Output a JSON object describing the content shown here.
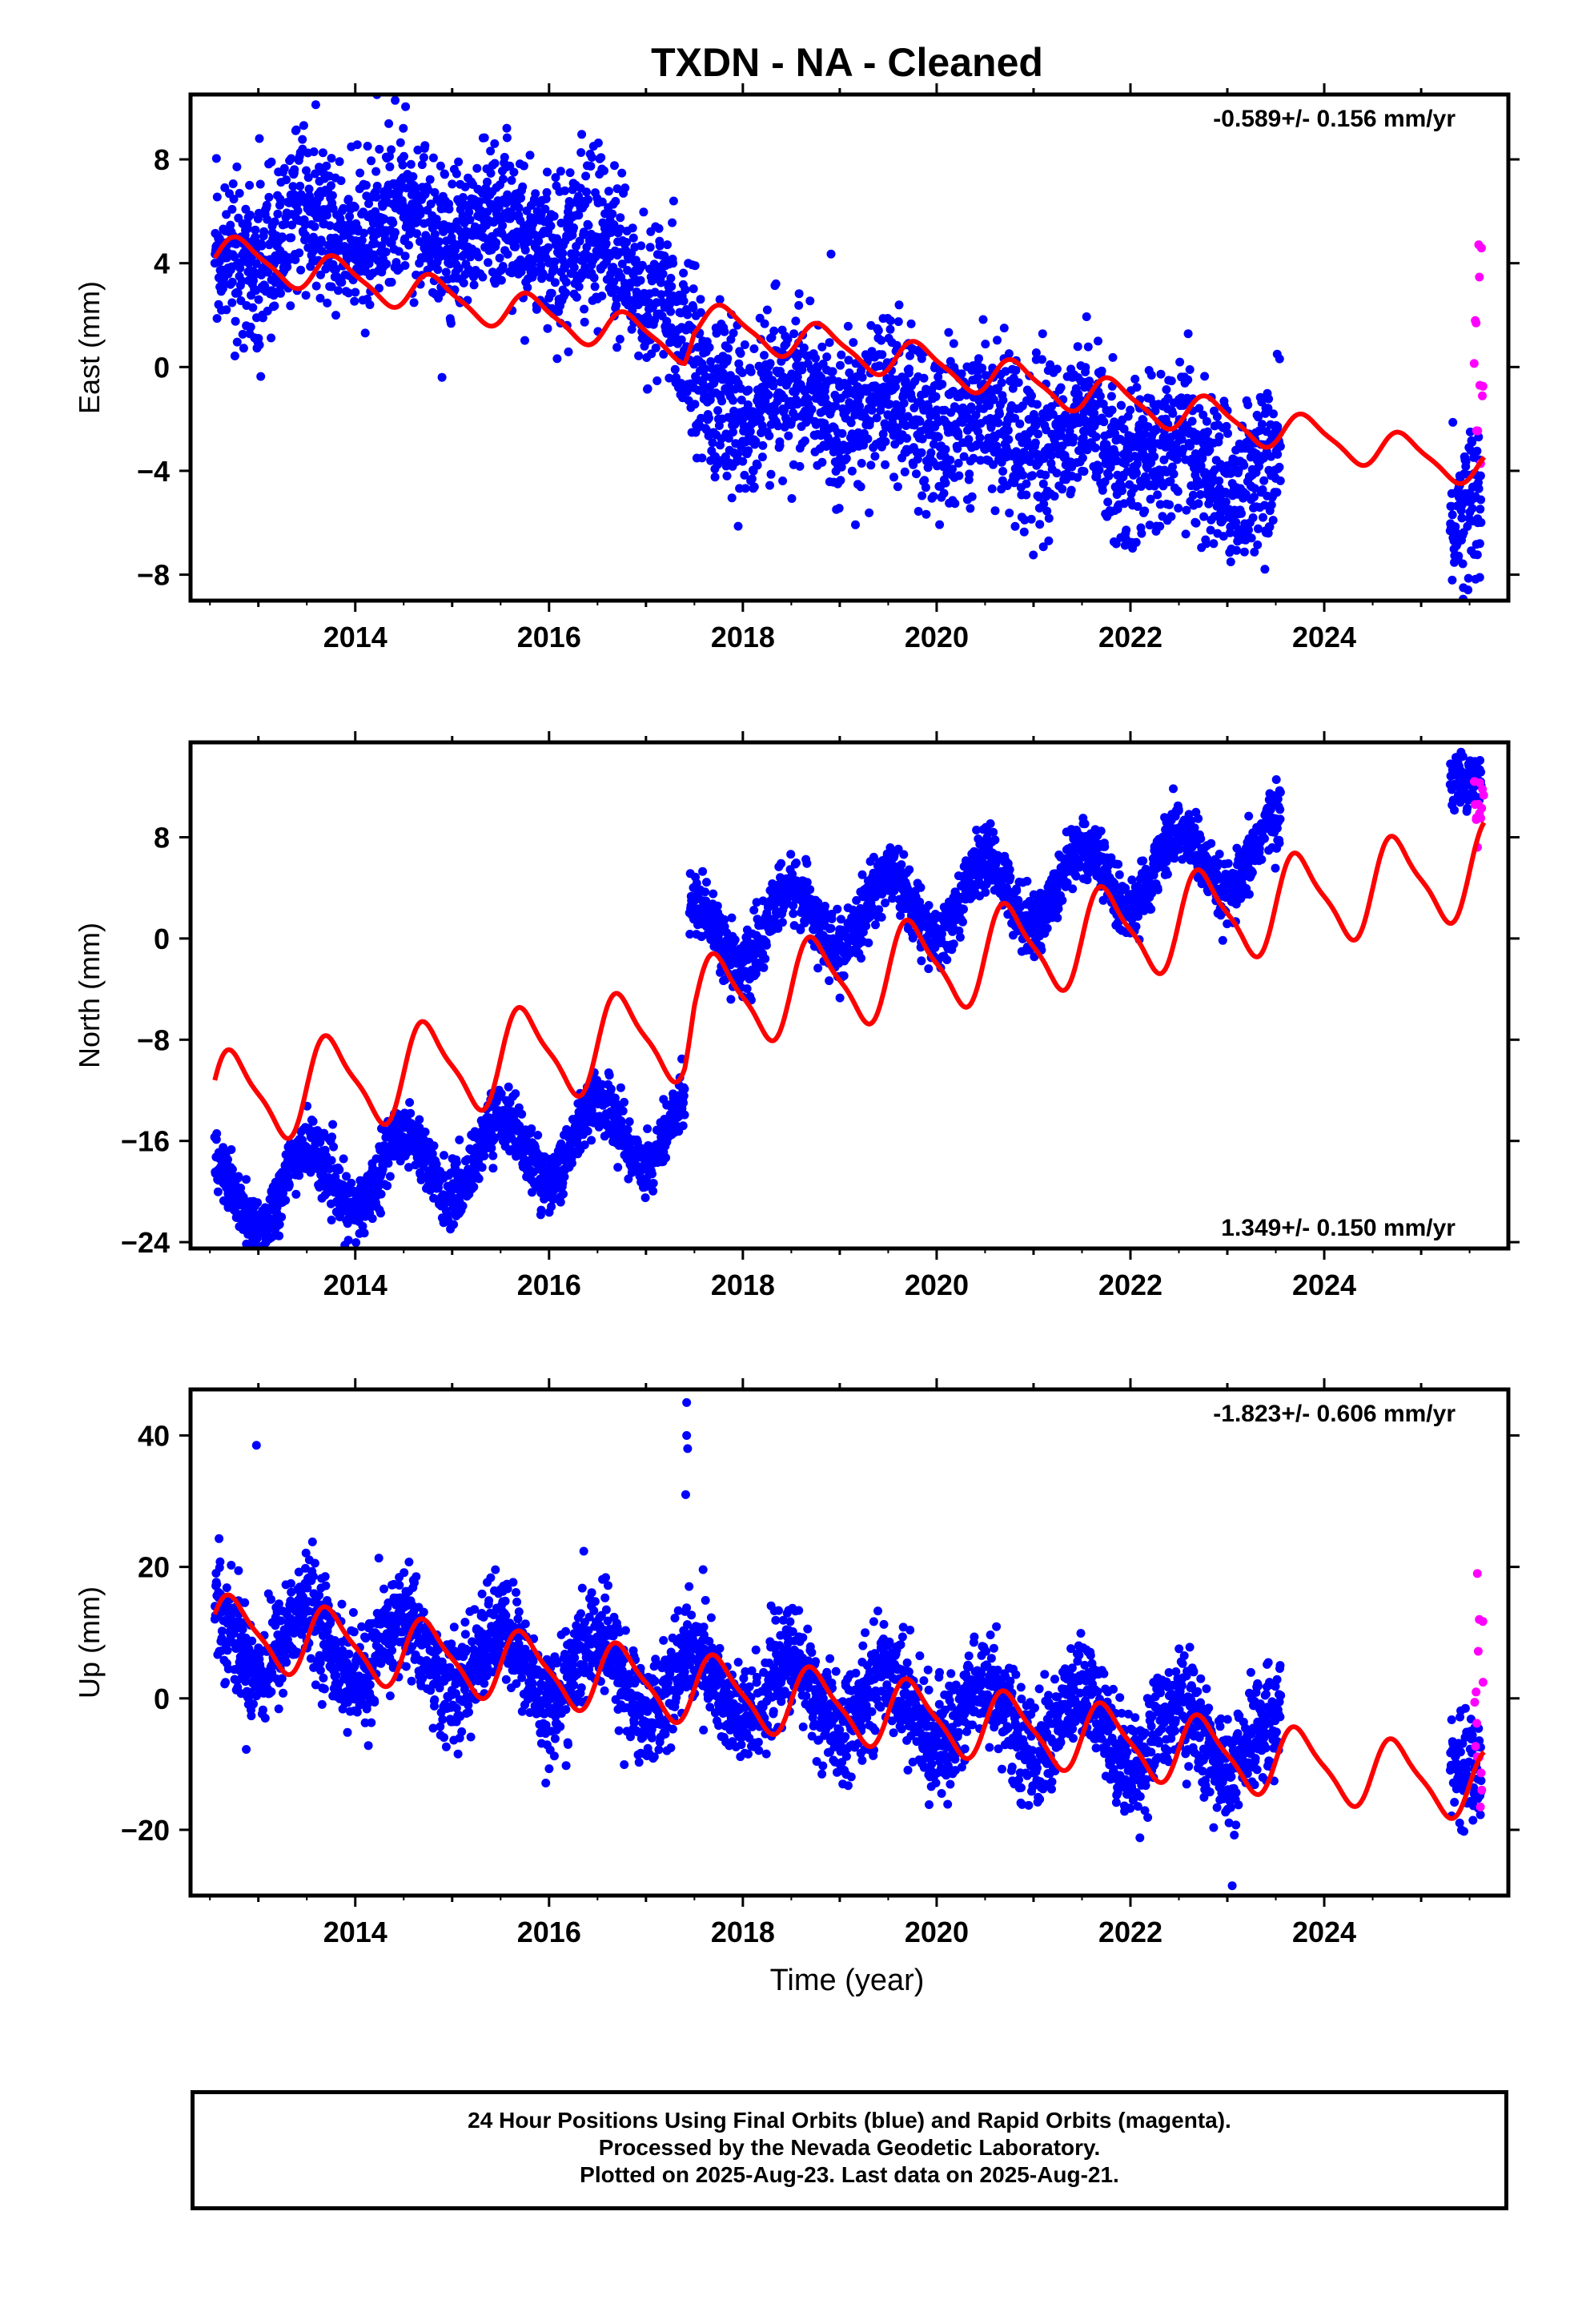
{
  "title": "TXDN  - NA - Cleaned",
  "x_axis_label": "Time (year)",
  "footer": {
    "line1": "24 Hour Positions Using Final Orbits (blue) and Rapid Orbits (magenta).",
    "line2": "Processed by the Nevada Geodetic Laboratory.",
    "line3": "Plotted on 2025-Aug-23. Last data on 2025-Aug-21."
  },
  "colors": {
    "final": "#0000ff",
    "rapid": "#ff00ff",
    "model": "#ff0000",
    "frame": "#000000"
  },
  "chart_data": [
    {
      "type": "scatter",
      "ylabel": "East (mm)",
      "rate_label": "-0.589+/- 0.156 mm/yr",
      "rate_position": "top-right",
      "xlim": [
        2012.3,
        2025.9
      ],
      "ylim": [
        -9.0,
        10.5
      ],
      "xticks": [
        2014,
        2016,
        2018,
        2020,
        2022,
        2024
      ],
      "yticks": [
        -8,
        -4,
        0,
        4,
        8
      ],
      "grid": false,
      "series": [
        {
          "role": "final",
          "x_range": [
            2012.55,
            2023.55
          ],
          "trend": {
            "x": [
              2012.55,
              2013.5,
              2015.0,
              2016.5,
              2017.2,
              2017.6,
              2019.0,
              2020.5,
              2022.0,
              2023.55
            ],
            "y": [
              3.8,
              5.4,
              5.4,
              4.6,
              2.8,
              -1.2,
              -1.5,
              -2.2,
              -3.0,
              -4.5
            ]
          },
          "amplitude": 0.7,
          "scatter": 1.5
        },
        {
          "role": "final",
          "x_range": [
            2025.3,
            2025.62
          ],
          "trend": {
            "x": [
              2025.3,
              2025.62
            ],
            "y": [
              -6.0,
              -4.8
            ]
          },
          "amplitude": 0.0,
          "scatter": 1.5
        },
        {
          "role": "rapid",
          "x_range": [
            2025.55,
            2025.65
          ],
          "trend": {
            "x": [
              2025.55,
              2025.65
            ],
            "y": [
              1.5,
              1.5
            ]
          },
          "amplitude": 0.0,
          "scatter": 2.8
        }
      ],
      "model": {
        "x": [
          2012.55,
          2017.4,
          2017.5,
          2025.65
        ],
        "y": [
          4.4,
          0.9,
          1.8,
          -3.9
        ],
        "amplitude": 0.7,
        "phase": 0.58
      }
    },
    {
      "type": "scatter",
      "ylabel": "North (mm)",
      "rate_label": "1.349+/- 0.150 mm/yr",
      "rate_position": "bottom-right",
      "xlim": [
        2012.3,
        2025.9
      ],
      "ylim": [
        -24.5,
        15.5
      ],
      "xticks": [
        2014,
        2016,
        2018,
        2020,
        2022,
        2024
      ],
      "yticks": [
        -24,
        -16,
        -8,
        0,
        8
      ],
      "grid": false,
      "series": [
        {
          "role": "final",
          "x_range": [
            2012.55,
            2017.4
          ],
          "trend": {
            "x": [
              2012.55,
              2017.4
            ],
            "y": [
              -20.5,
              -14.5
            ]
          },
          "amplitude": 2.8,
          "scatter": 1.2
        },
        {
          "role": "final",
          "x_range": [
            2017.45,
            2023.55
          ],
          "trend": {
            "x": [
              2017.45,
              2023.55
            ],
            "y": [
              0.0,
              6.8
            ]
          },
          "amplitude": 2.8,
          "scatter": 1.2
        },
        {
          "role": "final",
          "x_range": [
            2025.3,
            2025.62
          ],
          "trend": {
            "x": [
              2025.3,
              2025.62
            ],
            "y": [
              12.5,
              12.8
            ]
          },
          "amplitude": 0.0,
          "scatter": 1.0
        },
        {
          "role": "rapid",
          "x_range": [
            2025.55,
            2025.65
          ],
          "trend": {
            "x": [
              2025.55,
              2025.65
            ],
            "y": [
              10.5,
              10.0
            ]
          },
          "amplitude": 0.0,
          "scatter": 1.8
        }
      ],
      "model": {
        "x": [
          2012.55,
          2017.4,
          2017.5,
          2025.65
        ],
        "y": [
          -12.8,
          -7.4,
          -5.3,
          5.5
        ],
        "amplitude": 3.5,
        "phase": 0.5
      }
    },
    {
      "type": "scatter",
      "ylabel": "Up (mm)",
      "rate_label": "-1.823+/- 0.606 mm/yr",
      "rate_position": "top-right",
      "xlim": [
        2012.3,
        2025.9
      ],
      "ylim": [
        -30.0,
        47.0
      ],
      "xticks": [
        2014,
        2016,
        2018,
        2020,
        2022,
        2024
      ],
      "yticks": [
        -20,
        0,
        20,
        40
      ],
      "grid": false,
      "series": [
        {
          "role": "final",
          "x_range": [
            2012.55,
            2023.55
          ],
          "trend": {
            "x": [
              2012.55,
              2023.55
            ],
            "y": [
              10.0,
              -7.5
            ]
          },
          "amplitude": 5.2,
          "scatter": 4.0
        },
        {
          "role": "final",
          "x_range": [
            2025.3,
            2025.62
          ],
          "trend": {
            "x": [
              2025.3,
              2025.62
            ],
            "y": [
              -10.0,
              -11.0
            ]
          },
          "amplitude": 0.0,
          "scatter": 4.0
        },
        {
          "role": "rapid",
          "x_range": [
            2025.55,
            2025.65
          ],
          "trend": {
            "x": [
              2025.55,
              2025.65
            ],
            "y": [
              -6.0,
              -6.0
            ]
          },
          "amplitude": 0.0,
          "scatter": 9.0
        }
      ],
      "outliers": {
        "x": [
          2012.98,
          2017.42,
          2017.42,
          2017.43,
          2017.41,
          2023.05,
          2025.58,
          2025.6
        ],
        "y": [
          38.5,
          45.0,
          40.0,
          38.0,
          31.0,
          -28.5,
          19.0,
          12.0
        ]
      },
      "model": {
        "x": [
          2012.55,
          2025.65
        ],
        "y": [
          10.5,
          -13.4
        ],
        "amplitude": 5.0,
        "phase": 0.5
      }
    }
  ]
}
